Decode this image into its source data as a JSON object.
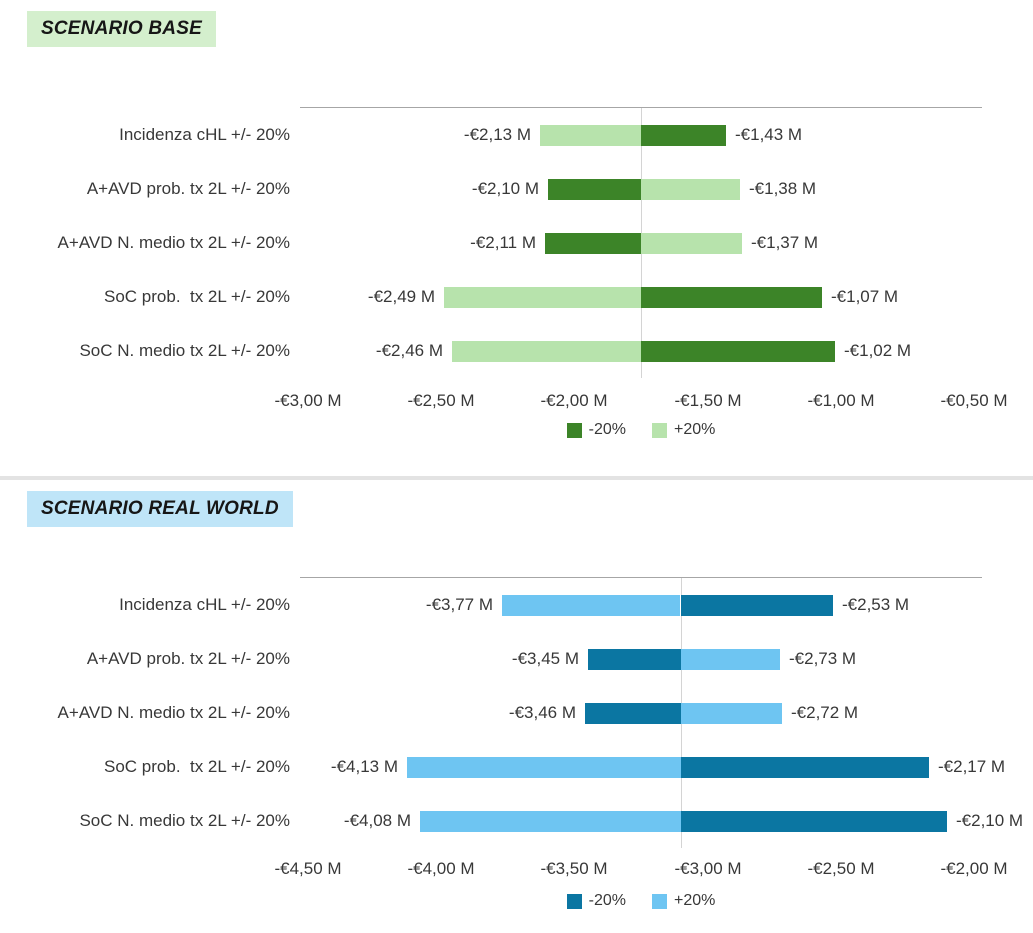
{
  "sections": [
    {
      "title": "SCENARIO BASE",
      "title_bg": "#d4efcd"
    },
    {
      "title": "SCENARIO REAL WORLD",
      "title_bg": "#bfe5f8"
    }
  ],
  "colors": {
    "plot_border": "#a6a6a6",
    "axis_line": "#d4d4d4",
    "divider": "#e3e3e3",
    "text": "#383838",
    "base_dark_green": "#3c8428",
    "base_light_green": "#b7e3ac",
    "rw_dark_blue": "#0b76a2",
    "rw_light_blue": "#6ec5f2"
  },
  "chart_data": [
    {
      "type": "bar",
      "variant": "horizontal-tornado",
      "title": "SCENARIO BASE",
      "categories": [
        "Incidenza cHL +/- 20%",
        "A+AVD prob. tx 2L +/- 20%",
        "A+AVD N. medio tx 2L +/- 20%",
        "SoC prob.  tx 2L +/- 20%",
        "SoC N. medio tx 2L +/- 20%"
      ],
      "series": [
        {
          "name": "-20%",
          "color": "#3c8428",
          "values": [
            -1.43,
            -2.1,
            -2.11,
            -1.07,
            -1.02
          ],
          "labels": [
            "-€1,43 M",
            "-€2,10 M",
            "-€2,11 M",
            "-€1,07 M",
            "-€1,02 M"
          ]
        },
        {
          "name": "+20%",
          "color": "#b7e3ac",
          "values": [
            -2.13,
            -1.38,
            -1.37,
            -2.49,
            -2.46
          ],
          "labels": [
            "-€2,13 M",
            "-€1,38 M",
            "-€1,37 M",
            "-€2,49 M",
            "-€2,46 M"
          ]
        }
      ],
      "base_value": -1.75,
      "unit": "€M",
      "xlim": [
        -3.03,
        -0.47
      ],
      "ticks": [
        {
          "value": -3.0,
          "label": "-€3,00 M"
        },
        {
          "value": -2.5,
          "label": "-€2,50 M"
        },
        {
          "value": -2.0,
          "label": "-€2,00 M"
        },
        {
          "value": -1.5,
          "label": "-€1,50 M"
        },
        {
          "value": -1.0,
          "label": "-€1,00 M"
        },
        {
          "value": -0.5,
          "label": "-€0,50 M"
        }
      ],
      "grid": false,
      "legend_position": "bottom"
    },
    {
      "type": "bar",
      "variant": "horizontal-tornado",
      "title": "SCENARIO REAL WORLD",
      "categories": [
        "Incidenza cHL +/- 20%",
        "A+AVD prob. tx 2L +/- 20%",
        "A+AVD N. medio tx 2L +/- 20%",
        "SoC prob.  tx 2L +/- 20%",
        "SoC N. medio tx 2L +/- 20%"
      ],
      "series": [
        {
          "name": "-20%",
          "color": "#0b76a2",
          "values": [
            -2.53,
            -3.45,
            -3.46,
            -2.17,
            -2.1
          ],
          "labels": [
            "-€2,53 M",
            "-€3,45 M",
            "-€3,46 M",
            "-€2,17 M",
            "-€2,10 M"
          ]
        },
        {
          "name": "+20%",
          "color": "#6ec5f2",
          "values": [
            -3.77,
            -2.73,
            -2.72,
            -4.13,
            -4.08
          ],
          "labels": [
            "-€3,77 M",
            "-€2,73 M",
            "-€2,72 M",
            "-€4,13 M",
            "-€4,08 M"
          ]
        }
      ],
      "base_value": -3.1,
      "unit": "€M",
      "xlim": [
        -4.53,
        -1.97
      ],
      "ticks": [
        {
          "value": -4.5,
          "label": "-€4,50 M"
        },
        {
          "value": -4.0,
          "label": "-€4,00 M"
        },
        {
          "value": -3.5,
          "label": "-€3,50 M"
        },
        {
          "value": -3.0,
          "label": "-€3,00 M"
        },
        {
          "value": -2.5,
          "label": "-€2,50 M"
        },
        {
          "value": -2.0,
          "label": "-€2,00 M"
        }
      ],
      "grid": false,
      "legend_position": "bottom"
    }
  ]
}
